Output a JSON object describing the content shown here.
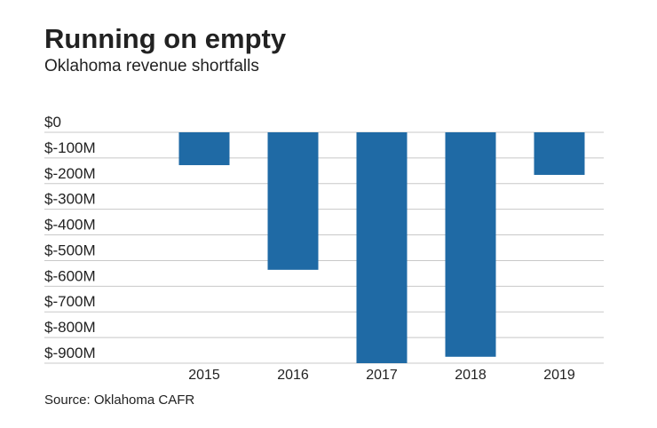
{
  "chart_data": {
    "type": "bar",
    "title": "Running on empty",
    "subtitle": "Oklahoma revenue shortfalls",
    "source": "Source: Oklahoma CAFR",
    "categories": [
      "2015",
      "2016",
      "2017",
      "2018",
      "2019"
    ],
    "values": [
      -128,
      -536,
      -900,
      -875,
      -166
    ],
    "color": "#1f6aa5",
    "ylim": [
      -900,
      0
    ],
    "yticks": [
      {
        "value": 0,
        "label": "$0"
      },
      {
        "value": -100,
        "label": "$-100M"
      },
      {
        "value": -200,
        "label": "$-200M"
      },
      {
        "value": -300,
        "label": "$-300M"
      },
      {
        "value": -400,
        "label": "$-400M"
      },
      {
        "value": -500,
        "label": "$-500M"
      },
      {
        "value": -600,
        "label": "$-600M"
      },
      {
        "value": -700,
        "label": "$-700M"
      },
      {
        "value": -800,
        "label": "$-800M"
      },
      {
        "value": -900,
        "label": "$-900M"
      }
    ],
    "grid": true
  }
}
